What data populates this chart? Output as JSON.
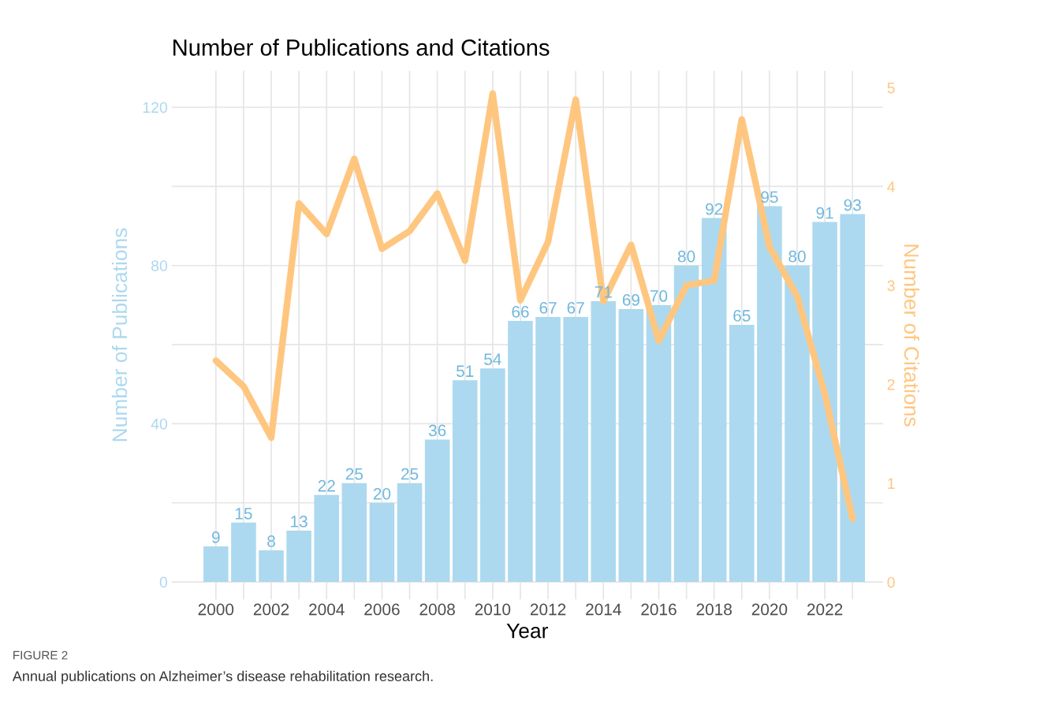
{
  "chart_data": {
    "type": "bar",
    "title": "Number of Publications and Citations",
    "xlabel": "Year",
    "ylabel": "Number of Publications",
    "y2label": "Number of Citations",
    "x": [
      2000,
      2001,
      2002,
      2003,
      2004,
      2005,
      2006,
      2007,
      2008,
      2009,
      2010,
      2011,
      2012,
      2013,
      2014,
      2015,
      2016,
      2017,
      2018,
      2019,
      2020,
      2021,
      2022,
      2023
    ],
    "series": [
      {
        "color": "#acd9ef",
        "values": [
          9,
          15,
          8,
          13,
          22,
          25,
          20,
          25,
          36,
          51,
          54,
          66,
          67,
          67,
          71,
          69,
          70,
          80,
          92,
          65,
          95,
          80,
          91,
          93
        ],
        "value_labels": [
          "9",
          "15",
          "8",
          "13",
          "22",
          "25",
          "20",
          "25",
          "36",
          "51",
          "54",
          "66",
          "67",
          "67",
          "71",
          "69",
          "70",
          "80",
          "92",
          "65",
          "95",
          "80",
          "91",
          "93"
        ]
      },
      {
        "type": "line",
        "axis": "y2",
        "color": "#ffc680",
        "values": [
          2.24,
          1.98,
          1.46,
          3.83,
          3.52,
          4.28,
          3.37,
          3.55,
          3.93,
          3.25,
          4.94,
          2.85,
          3.44,
          4.88,
          2.84,
          3.41,
          2.44,
          3.0,
          3.05,
          4.68,
          3.39,
          2.89,
          1.9,
          0.64
        ]
      }
    ],
    "xlim": [
      1998.4,
      2024.1
    ],
    "xticks": [
      2000,
      {
        "value": 2001,
        "label": null
      },
      2002,
      {
        "value": 2003,
        "label": null
      },
      2004,
      {
        "value": 2005,
        "label": null
      },
      2006,
      {
        "value": 2007,
        "label": null
      },
      2008,
      {
        "value": 2009,
        "label": null
      },
      2010,
      {
        "value": 2011,
        "label": null
      },
      2012,
      {
        "value": 2013,
        "label": null
      },
      2014,
      {
        "value": 2015,
        "label": null
      },
      2016,
      {
        "value": 2017,
        "label": null
      },
      2018,
      {
        "value": 2019,
        "label": null
      },
      2020,
      {
        "value": 2021,
        "label": null
      },
      2022,
      {
        "value": 2023,
        "label": null
      }
    ],
    "ylim": [
      -4.4,
      129.2
    ],
    "yticks": [
      0,
      {
        "value": 20,
        "label": null
      },
      40,
      {
        "value": 60,
        "label": null
      },
      80,
      {
        "value": 100,
        "label": null
      },
      120
    ],
    "y2lim": [
      -0.175,
      5.17
    ],
    "y2ticks": [
      0,
      1,
      2,
      3,
      4,
      5
    ],
    "grid": true,
    "legend": false,
    "annotations": [
      "FIGURE 2",
      "Annual publications on Alzheimer’s disease rehabilitation research."
    ]
  }
}
